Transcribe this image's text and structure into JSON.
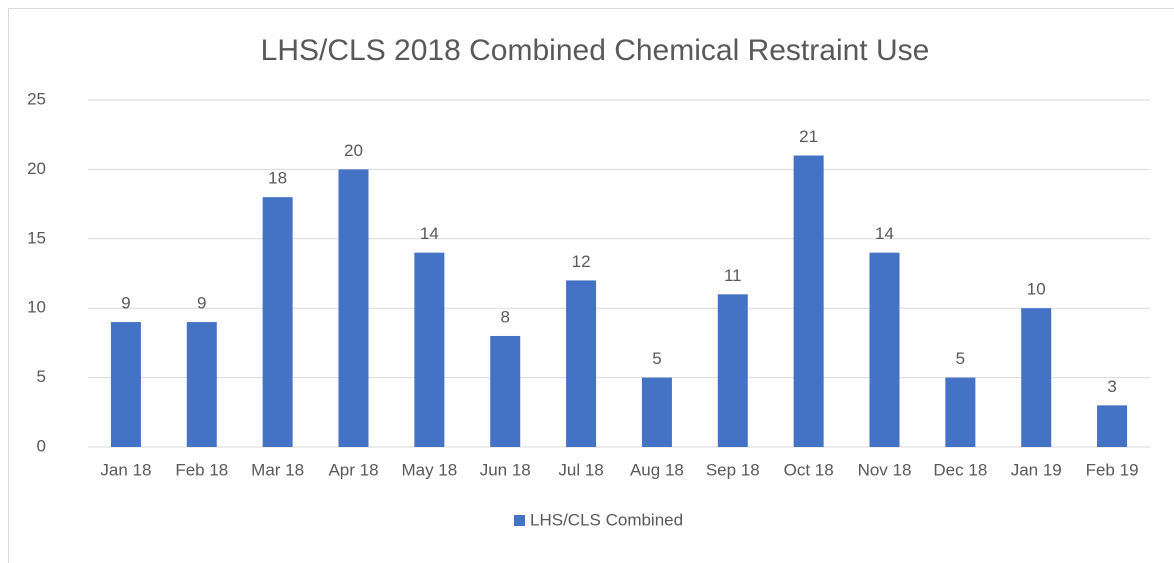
{
  "chart_data": {
    "type": "bar",
    "title": "LHS/CLS 2018 Combined Chemical Restraint Use",
    "categories": [
      "Jan 18",
      "Feb 18",
      "Mar 18",
      "Apr 18",
      "May 18",
      "Jun 18",
      "Jul 18",
      "Aug 18",
      "Sep 18",
      "Oct 18",
      "Nov 18",
      "Dec 18",
      "Jan 19",
      "Feb 19"
    ],
    "series": [
      {
        "name": "LHS/CLS Combined",
        "color": "#4472c4",
        "values": [
          9,
          9,
          18,
          20,
          14,
          8,
          12,
          5,
          11,
          21,
          14,
          5,
          10,
          3
        ]
      }
    ],
    "ylim": [
      0,
      25
    ],
    "yticks": [
      0,
      5,
      10,
      15,
      20,
      25
    ],
    "grid": true,
    "legend": "bottom"
  }
}
